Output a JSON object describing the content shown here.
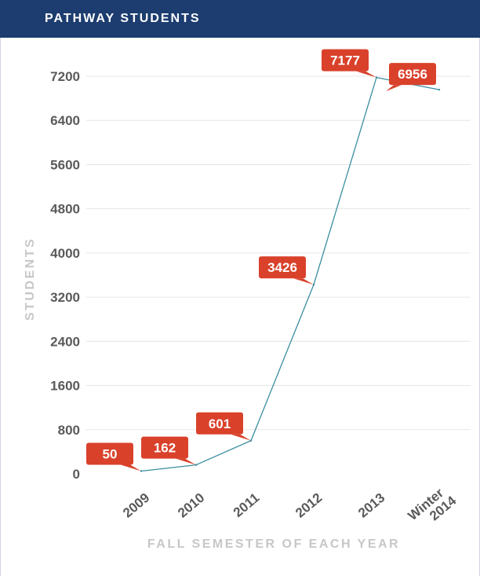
{
  "header": {
    "title": "PATHWAY STUDENTS"
  },
  "chart_data": {
    "type": "line",
    "title": "PATHWAY STUDENTS",
    "xlabel": "FALL SEMESTER OF EACH YEAR",
    "ylabel": "STUDENTS",
    "categories": [
      "2009",
      "2010",
      "2011",
      "2012",
      "2013",
      "Winter 2014"
    ],
    "values": [
      50,
      162,
      601,
      3426,
      7177,
      6956
    ],
    "data_labels": [
      "50",
      "162",
      "601",
      "3426",
      "7177",
      "6956"
    ],
    "yticks": [
      "0",
      "800",
      "1600",
      "2400",
      "3200",
      "4000",
      "4800",
      "5600",
      "6400",
      "7200"
    ],
    "ylim": [
      0,
      7200
    ],
    "grid": true,
    "legend": "none",
    "colors": {
      "header": "#1d3d70",
      "line": "#3a8ea0",
      "label": "#d9412b",
      "grid": "#e6e6e6"
    }
  }
}
